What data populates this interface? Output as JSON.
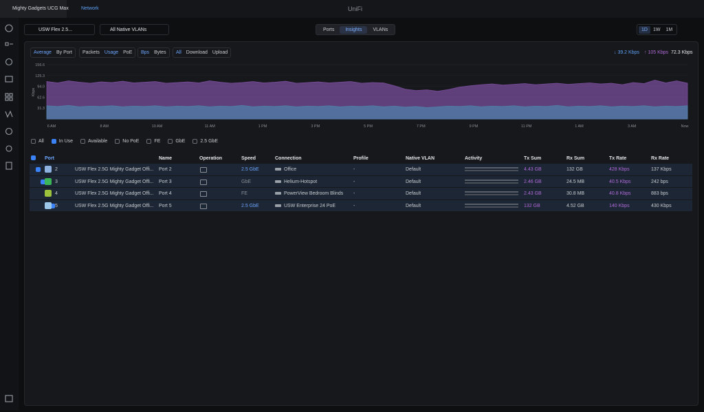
{
  "topbar": {
    "tabs": [
      "Mighty Gadgets UCG Max",
      "Network"
    ],
    "brand": "UniFi"
  },
  "toolbar": {
    "device": "USW Flex 2.5...",
    "vlan": "All Native VLANs",
    "views": [
      "Ports",
      "Insights",
      "VLANs"
    ],
    "ranges": [
      "1D",
      "1W",
      "1M"
    ]
  },
  "filters": [
    [
      "Average",
      "By Port"
    ],
    [
      "Packets",
      "Usage",
      "PoE"
    ],
    [
      "Bps",
      "Bytes"
    ],
    [
      "All",
      "Download",
      "Upload"
    ]
  ],
  "summary": {
    "download": "↓ 39.2 Kbps",
    "upload": "↑ 105 Kbps",
    "total": "72.3 Kbps"
  },
  "chart": {
    "type": "area",
    "ylabel": "Kbps",
    "ylim": [
      0,
      156.6
    ],
    "yticks": [
      156.6,
      125.3,
      {
        "value": 94,
        "label": "94.0"
      },
      62.6,
      31.3
    ],
    "xticks": [
      "6 AM",
      "8 AM",
      "10 AM",
      "11 AM",
      "1 PM",
      "3 PM",
      "5 PM",
      "7 PM",
      "9 PM",
      "11 PM",
      "1 AM",
      "3 AM",
      "Now"
    ],
    "series": [
      {
        "color": "#7a4d9c",
        "values": [
          108,
          104,
          110,
          106,
          103,
          107,
          105,
          109,
          104,
          106,
          108,
          103,
          105,
          107,
          104,
          110,
          106,
          103,
          105,
          108,
          104,
          106,
          109,
          103,
          105,
          107,
          104,
          106,
          108,
          103,
          105,
          104,
          96,
          86,
          82,
          84,
          80,
          85,
          92,
          96,
          99,
          101,
          98,
          100,
          102,
          99,
          101,
          103,
          100,
          102,
          104,
          101,
          103,
          99,
          105,
          102,
          112,
          104,
          110,
          103
        ]
      },
      {
        "color": "#4f7fa8",
        "values": [
          38,
          36,
          39,
          35,
          37,
          36,
          38,
          35,
          37,
          36,
          38,
          35,
          37,
          36,
          38,
          35,
          37,
          36,
          39,
          35,
          37,
          36,
          38,
          35,
          37,
          36,
          38,
          35,
          37,
          36,
          38,
          35,
          37,
          34,
          36,
          33,
          35,
          37,
          36,
          38,
          35,
          37,
          36,
          38,
          35,
          37,
          36,
          39,
          35,
          37,
          36,
          38,
          35,
          37,
          36,
          38,
          35,
          37,
          36,
          38
        ]
      }
    ]
  },
  "checkboxes": [
    {
      "label": "All",
      "checked": false
    },
    {
      "label": "In Use",
      "checked": true
    },
    {
      "label": "Available",
      "checked": false
    },
    {
      "label": "No PoE",
      "checked": false
    },
    {
      "label": "FE",
      "checked": false
    },
    {
      "label": "GbE",
      "checked": false
    },
    {
      "label": "2.5 GbE",
      "checked": false
    }
  ],
  "table": {
    "columns": [
      "Port",
      "Name",
      "Operation",
      "Speed",
      "Connection",
      "Profile",
      "Native VLAN",
      "Activity",
      "Tx Sum",
      "Rx Sum",
      "Tx Rate",
      "Rx Rate"
    ],
    "rows": [
      {
        "port": "2",
        "color": "#8fb3e0",
        "device": "USW Flex 2.5G Mighty Gadget Offi...",
        "name": "Port 2",
        "speed": "2.5 GbE",
        "connection": "Office",
        "profile": "-",
        "vlan": "Default",
        "tx_sum": "4.43 GB",
        "rx_sum": "132 GB",
        "tx_rate": "428 Kbps",
        "rx_rate": "137 Kbps"
      },
      {
        "port": "3",
        "color": "#3cb55a",
        "device": "USW Flex 2.5G Mighty Gadget Offi...",
        "name": "Port 3",
        "speed": "GbE",
        "connection": "Helium-Hotspot",
        "profile": "-",
        "vlan": "Default",
        "tx_sum": "2.46 GB",
        "rx_sum": "24.5 MB",
        "tx_rate": "40.5 Kbps",
        "rx_rate": "242 bps"
      },
      {
        "port": "4",
        "color": "#9cc23c",
        "device": "USW Flex 2.5G Mighty Gadget Offi...",
        "name": "Port 4",
        "speed": "FE",
        "connection": "PowerView Bedroom Blinds",
        "profile": "-",
        "vlan": "Default",
        "tx_sum": "2.43 GB",
        "rx_sum": "30.8 MB",
        "tx_rate": "40.8 Kbps",
        "rx_rate": "883 bps"
      },
      {
        "port": "5",
        "color": "#9cc7e8",
        "device": "USW Flex 2.5G Mighty Gadget Offi...",
        "name": "Port 5",
        "speed": "2.5 GbE",
        "connection": "USW Enterprise 24 PoE",
        "profile": "-",
        "vlan": "Default",
        "tx_sum": "132 GB",
        "rx_sum": "4.52 GB",
        "tx_rate": "140 Kbps",
        "rx_rate": "430 Kbps"
      }
    ]
  }
}
